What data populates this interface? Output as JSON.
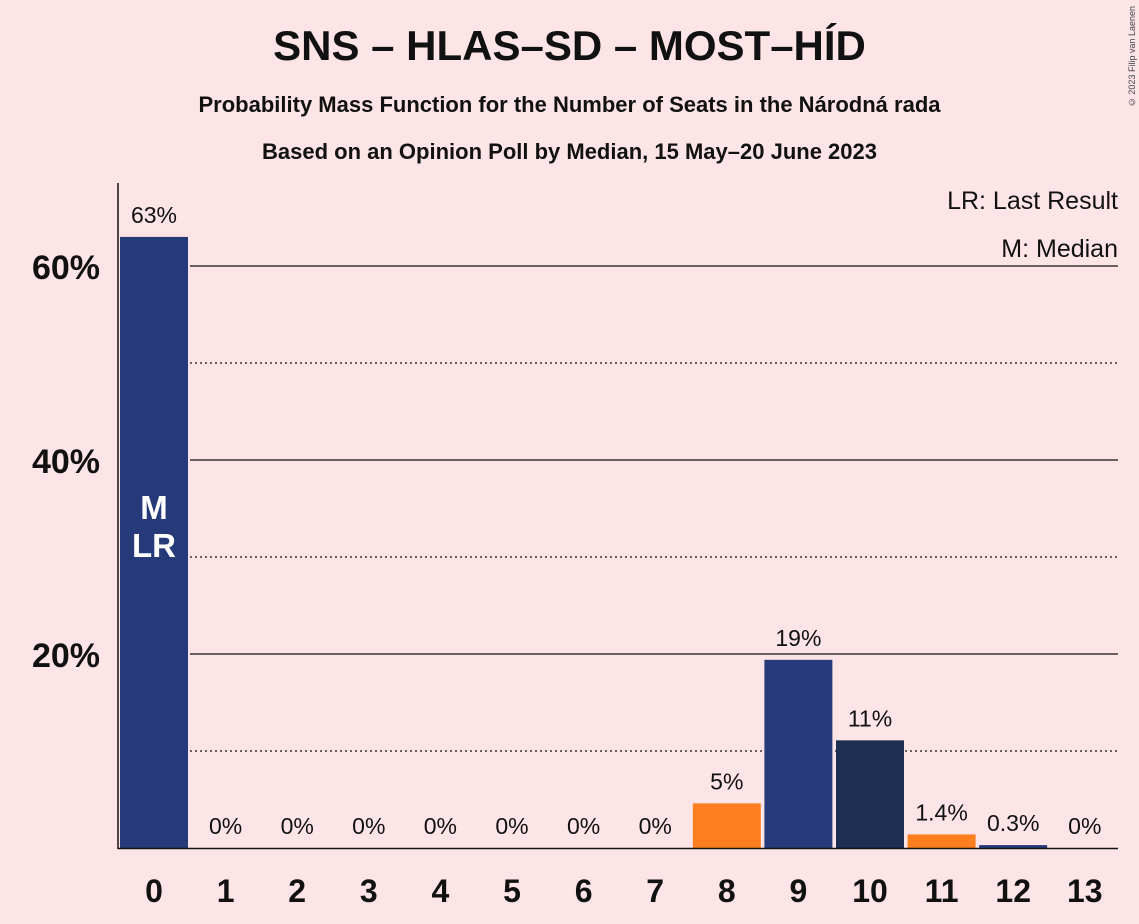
{
  "title": "SNS – HLAS–SD – MOST–HÍD",
  "subtitle1": "Probability Mass Function for the Number of Seats in the Národná rada",
  "subtitle2": "Based on an Opinion Poll by Median, 15 May–20 June 2023",
  "copyright": "© 2023 Filip van Laenen",
  "legend": {
    "lr": "LR: Last Result",
    "m": "M: Median"
  },
  "colors": {
    "background": "#fde4e6",
    "bar_blue": "#263a7a",
    "bar_orange": "#ff7f1e",
    "bar_dark": "#1c2e52"
  },
  "chart_data": {
    "type": "bar",
    "categories": [
      "0",
      "1",
      "2",
      "3",
      "4",
      "5",
      "6",
      "7",
      "8",
      "9",
      "10",
      "11",
      "12",
      "13"
    ],
    "values": [
      63,
      0,
      0,
      0,
      0,
      0,
      0,
      0,
      4.6,
      19.4,
      11.1,
      1.4,
      0.3,
      0
    ],
    "value_labels": [
      "63%",
      "0%",
      "0%",
      "0%",
      "0%",
      "0%",
      "0%",
      "0%",
      "5%",
      "19%",
      "11%",
      "1.4%",
      "0.3%",
      "0%"
    ],
    "bar_colors": [
      "#263a7a",
      "#263a7a",
      "#263a7a",
      "#263a7a",
      "#263a7a",
      "#263a7a",
      "#263a7a",
      "#263a7a",
      "#ff7f1e",
      "#263a7a",
      "#1c2e52",
      "#ff7f1e",
      "#263a7a",
      "#263a7a"
    ],
    "ylim": [
      0,
      69
    ],
    "yticks": [
      20,
      40,
      60
    ],
    "ytick_labels": [
      "20%",
      "40%",
      "60%"
    ],
    "minor_gridlines": [
      10,
      30,
      50
    ],
    "median_seat": "0",
    "last_result_seat": "0",
    "bar_annotation_lines": [
      "M",
      "LR"
    ],
    "legend_position": "top-right",
    "xlabel": "",
    "ylabel": ""
  }
}
